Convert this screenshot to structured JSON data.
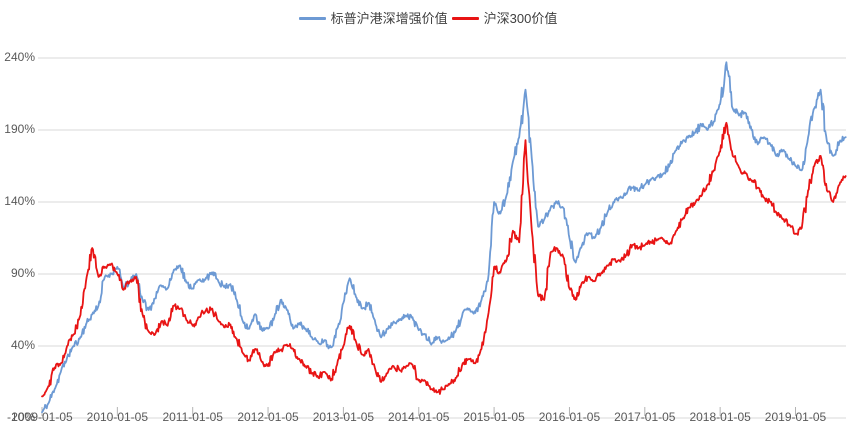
{
  "chart_data": {
    "type": "line",
    "title": "",
    "legend_position": "top",
    "grid": "horizontal-only",
    "background_color": "#ffffff",
    "gridline_color": "#d9d9d9",
    "axis_tick_color": "#b3b3b3",
    "label_color": "#595959",
    "legend_text_color": "#404040",
    "x_start_month": "2009-01",
    "x_interval": "monthly",
    "x_tick_labels": [
      "2009-01-05",
      "2010-01-05",
      "2011-01-05",
      "2012-01-05",
      "2013-01-05",
      "2014-01-05",
      "2015-01-05",
      "2016-01-05",
      "2017-01-05",
      "2018-01-05",
      "2019-01-05"
    ],
    "y_tick_labels": [
      "-10%",
      "40%",
      "90%",
      "140%",
      "190%",
      "240%"
    ],
    "y_tick_values": [
      -10,
      40,
      90,
      140,
      190,
      240
    ],
    "ylim": [
      -10,
      240
    ],
    "y_unit": "%",
    "series": [
      {
        "id": "sp-hksh-enhanced-value",
        "name": "标普沪港深增强价值",
        "color": "#6d9ad4",
        "values": [
          -6,
          0,
          10,
          22,
          32,
          40,
          45,
          55,
          62,
          68,
          88,
          90,
          95,
          80,
          85,
          90,
          72,
          65,
          73,
          82,
          80,
          93,
          96,
          84,
          80,
          86,
          86,
          91,
          86,
          81,
          83,
          72,
          57,
          52,
          62,
          51,
          52,
          60,
          72,
          65,
          52,
          56,
          52,
          46,
          42,
          44,
          39,
          52,
          70,
          87,
          74,
          66,
          70,
          58,
          46,
          52,
          57,
          58,
          61,
          60,
          51,
          48,
          41,
          46,
          43,
          46,
          52,
          63,
          66,
          63,
          72,
          85,
          140,
          132,
          145,
          168,
          185,
          218,
          170,
          123,
          128,
          136,
          140,
          136,
          115,
          98,
          110,
          118,
          115,
          122,
          132,
          140,
          143,
          146,
          150,
          148,
          152,
          156,
          158,
          160,
          166,
          176,
          182,
          186,
          188,
          194,
          190,
          196,
          208,
          237,
          205,
          200,
          202,
          190,
          180,
          185,
          180,
          172,
          176,
          170,
          165,
          162,
          185,
          205,
          218,
          182,
          172,
          182,
          185
        ]
      },
      {
        "id": "csi300-value",
        "name": "沪深300价值",
        "color": "#e81414",
        "values": [
          5,
          12,
          25,
          28,
          40,
          48,
          60,
          85,
          108,
          88,
          95,
          97,
          90,
          79,
          85,
          88,
          62,
          50,
          48,
          57,
          54,
          68,
          66,
          58,
          54,
          60,
          64,
          66,
          58,
          53,
          55,
          45,
          35,
          30,
          38,
          29,
          26,
          36,
          37,
          41,
          38,
          31,
          26,
          21,
          18,
          22,
          16,
          27,
          40,
          54,
          43,
          34,
          38,
          25,
          15,
          21,
          26,
          23,
          26,
          27,
          16,
          16,
          10,
          8,
          10,
          14,
          18,
          28,
          31,
          28,
          38,
          60,
          95,
          91,
          100,
          120,
          112,
          183,
          120,
          75,
          72,
          105,
          108,
          102,
          80,
          72,
          84,
          88,
          85,
          90,
          96,
          100,
          99,
          103,
          110,
          108,
          110,
          112,
          114,
          114,
          111,
          120,
          128,
          136,
          139,
          144,
          152,
          162,
          175,
          195,
          172,
          164,
          160,
          155,
          150,
          143,
          140,
          132,
          128,
          124,
          118,
          122,
          148,
          165,
          172,
          148,
          140,
          152,
          158
        ]
      }
    ]
  }
}
